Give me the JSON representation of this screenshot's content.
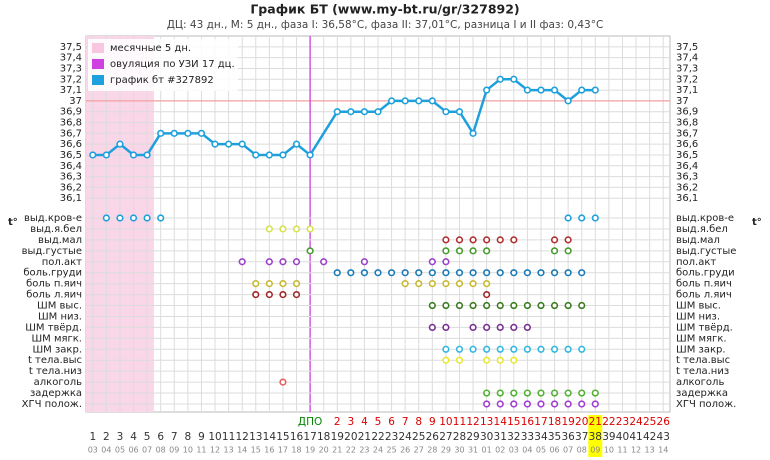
{
  "chart_data": {
    "type": "line",
    "title": "График БТ (www.my-bt.ru/gr/327892)",
    "subtitle": "ДЦ: 43 дн., М: 5 дн., фаза I: 36,58°C, фаза II: 37,01°C, разница I и II фаз: 0,43°C",
    "y_label": "t°",
    "legend": [
      "месячные 5 дн.",
      "овуляция по УЗИ 17 дц.",
      "график бт #327892"
    ],
    "menstruation_days": 5,
    "ovulation_day": 17,
    "coverline": 37,
    "highlight_day": 38,
    "ylim": [
      36.0,
      37.6
    ],
    "yticks": [
      {
        "value": 36.1,
        "label": "36,1"
      },
      {
        "value": 36.2,
        "label": "36,2"
      },
      {
        "value": 36.3,
        "label": "36,3"
      },
      {
        "value": 36.4,
        "label": "36,4"
      },
      {
        "value": 36.5,
        "label": "36,5"
      },
      {
        "value": 36.6,
        "label": "36,6"
      },
      {
        "value": 36.7,
        "label": "36,7"
      },
      {
        "value": 36.8,
        "label": "36,8"
      },
      {
        "value": 36.9,
        "label": "36,9"
      },
      37,
      {
        "value": 37.1,
        "label": "37,1"
      },
      {
        "value": 37.2,
        "label": "37,2"
      },
      {
        "value": 37.3,
        "label": "37,3"
      },
      {
        "value": 37.4,
        "label": "37,4"
      },
      {
        "value": 37.5,
        "label": "37,5"
      }
    ],
    "xlim": [
      0.5,
      43.5
    ],
    "xticks": [
      1,
      2,
      3,
      4,
      5,
      6,
      7,
      8,
      9,
      10,
      11,
      12,
      13,
      14,
      15,
      16,
      17,
      18,
      19,
      20,
      21,
      22,
      23,
      24,
      25,
      26,
      27,
      28,
      29,
      30,
      31,
      32,
      33,
      34,
      35,
      36,
      37,
      38,
      39,
      40,
      41,
      42,
      43
    ],
    "date_labels": [
      "03",
      "04",
      "05",
      "06",
      "07",
      "08",
      "09",
      "10",
      "11",
      "12",
      "13",
      "14",
      "15",
      "16",
      "17",
      "18",
      "19",
      "20",
      "21",
      "22",
      "23",
      "24",
      "25",
      "26",
      "27",
      "28",
      "29",
      "30",
      "31",
      "01",
      "02",
      "03",
      "04",
      "05",
      "06",
      "07",
      "08",
      "09",
      "10",
      "11",
      "12",
      "13",
      "14"
    ],
    "dpo_labels": [
      null,
      null,
      null,
      null,
      null,
      null,
      null,
      null,
      null,
      null,
      null,
      null,
      null,
      null,
      null,
      null,
      "ДПО",
      null,
      "2",
      "3",
      "4",
      "5",
      "6",
      "7",
      "8",
      "9",
      "10",
      "11",
      "12",
      "13",
      "14",
      "15",
      "16",
      "17",
      "18",
      "19",
      "20",
      "21",
      "22",
      "23",
      "24",
      "25",
      "26"
    ],
    "series": [
      {
        "name": "график бт #327892",
        "color": "#1ea0dc",
        "x": [
          1,
          2,
          3,
          4,
          5,
          6,
          7,
          8,
          9,
          10,
          11,
          12,
          13,
          14,
          15,
          16,
          17,
          19,
          20,
          21,
          22,
          23,
          24,
          25,
          26,
          27,
          28,
          29,
          30,
          31,
          32,
          33,
          34,
          35,
          36,
          37,
          38
        ],
        "values": [
          36.5,
          36.5,
          36.6,
          36.5,
          36.5,
          36.7,
          36.7,
          36.7,
          36.7,
          36.6,
          36.6,
          36.6,
          36.5,
          36.5,
          36.5,
          36.6,
          36.5,
          36.9,
          36.9,
          36.9,
          36.9,
          37.0,
          37.0,
          37.0,
          37.0,
          36.9,
          36.9,
          36.7,
          37.1,
          37.2,
          37.2,
          37.1,
          37.1,
          37.1,
          37.0,
          37.1,
          37.1
        ]
      }
    ],
    "symptom_rows": [
      {
        "name": "выд.кров-е",
        "color": "#1ea0dc",
        "days": [
          2,
          3,
          4,
          5,
          6,
          36,
          37,
          38
        ]
      },
      {
        "name": "выд.я.бел",
        "color": "#d8e24a",
        "days": [
          14,
          15,
          16,
          17
        ]
      },
      {
        "name": "выд.мал",
        "color": "#b03030",
        "days": [
          27,
          28,
          29,
          30,
          31,
          32,
          35,
          36
        ]
      },
      {
        "name": "выд.густые",
        "color": "#4a9a30",
        "days": [
          17,
          27,
          28,
          29,
          30,
          35,
          36
        ]
      },
      {
        "name": "пол.акт",
        "color": "#9b3fc8",
        "days": [
          12,
          14,
          15,
          16,
          18,
          21,
          26,
          27
        ]
      },
      {
        "name": "боль.груди",
        "color": "#1a7ab8",
        "days": [
          19,
          20,
          21,
          22,
          23,
          24,
          25,
          26,
          27,
          28,
          29,
          30,
          31,
          32,
          33,
          34,
          35,
          36,
          37
        ]
      },
      {
        "name": "боль п.яич",
        "color": "#c8b830",
        "days": [
          13,
          14,
          15,
          16,
          24,
          25,
          26,
          27,
          28,
          29,
          30
        ]
      },
      {
        "name": "боль л.яич",
        "color": "#a02828",
        "days": [
          13,
          14,
          15,
          16,
          30
        ]
      },
      {
        "name": "ШМ выс.",
        "color": "#3a7a20",
        "days": [
          26,
          27,
          28,
          29,
          30,
          31,
          32,
          33,
          34,
          35,
          36,
          37
        ]
      },
      {
        "name": "ШМ низ.",
        "color": "#888888",
        "days": []
      },
      {
        "name": "ШМ твёрд.",
        "color": "#7a3090",
        "days": [
          26,
          27,
          29,
          30,
          31,
          32,
          33
        ]
      },
      {
        "name": "ШМ мягк.",
        "color": "#888888",
        "days": []
      },
      {
        "name": "ШМ закр.",
        "color": "#30b8e0",
        "days": [
          27,
          28,
          29,
          30,
          31,
          32,
          33,
          34,
          35,
          36,
          37
        ]
      },
      {
        "name": "t тела.выс",
        "color": "#e8e830",
        "days": [
          27,
          28,
          30,
          31,
          32
        ]
      },
      {
        "name": "t тела.низ",
        "color": "#888888",
        "days": []
      },
      {
        "name": "алкоголь",
        "color": "#e86060",
        "days": [
          15
        ]
      },
      {
        "name": "задержка",
        "color": "#50b030",
        "days": [
          30,
          31,
          32,
          33,
          34,
          35,
          36,
          37,
          38
        ]
      },
      {
        "name": "ХГЧ полож.",
        "color": "#a040d0",
        "days": [
          30,
          31,
          32,
          33,
          34,
          35,
          36,
          37,
          38
        ]
      }
    ]
  }
}
